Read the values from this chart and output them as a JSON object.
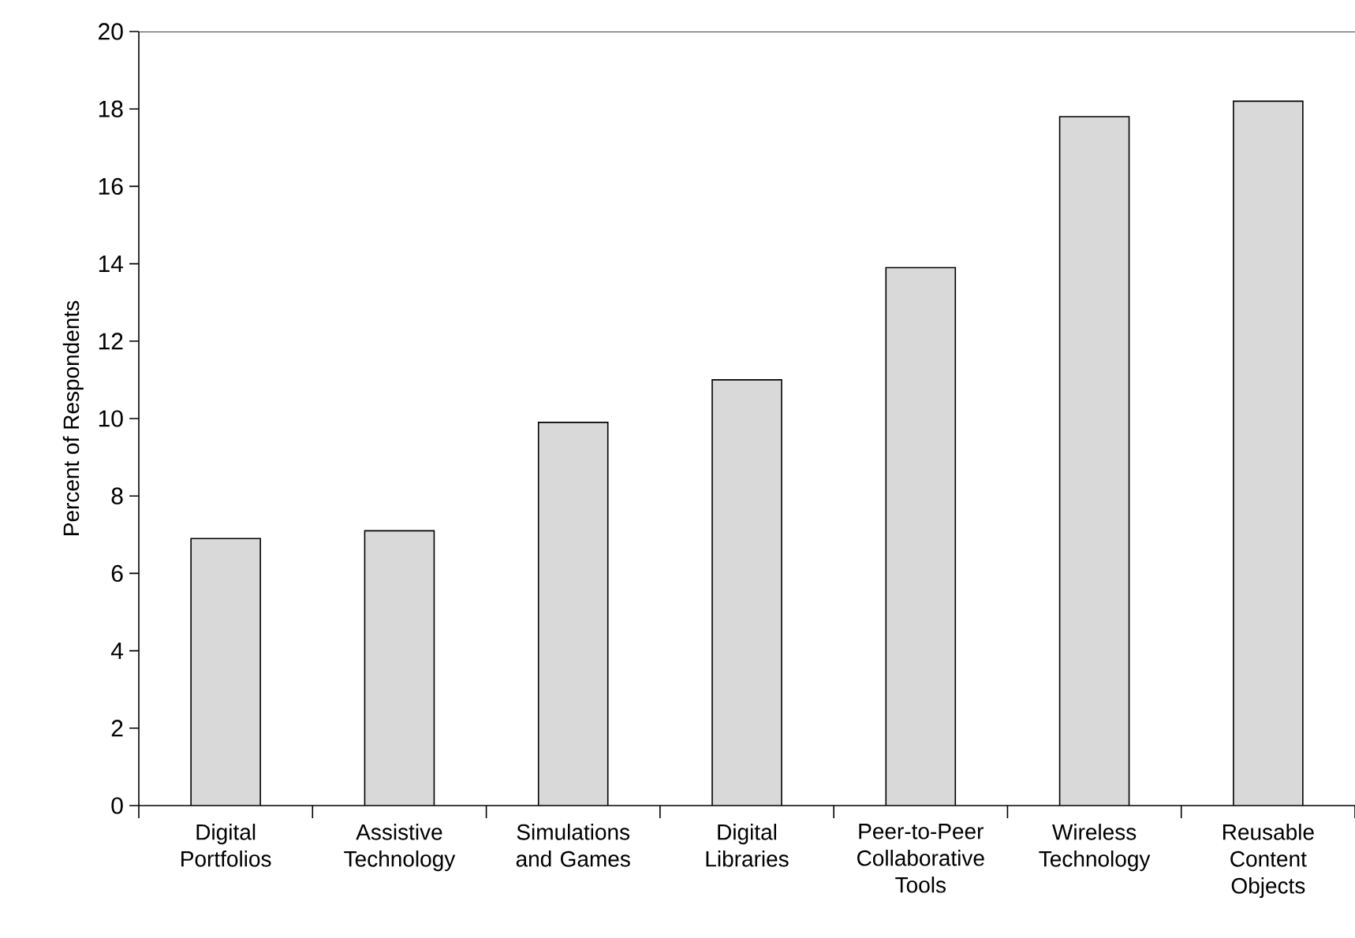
{
  "chart_data": {
    "type": "bar",
    "ylabel": "Percent of Respondents",
    "categories": [
      "Digital Portfolios",
      "Assistive Technology",
      "Simulations and Games",
      "Digital Libraries",
      "Peer-to-Peer Collaborative Tools",
      "Wireless Technology",
      "Reusable Content Objects"
    ],
    "values": [
      6.9,
      7.1,
      9.9,
      11.0,
      13.9,
      17.8,
      18.2
    ],
    "color": "#d9d9d9",
    "ylim": [
      0,
      20
    ],
    "yticks": [
      0,
      2,
      4,
      6,
      8,
      10,
      12,
      14,
      16,
      18,
      20
    ]
  }
}
